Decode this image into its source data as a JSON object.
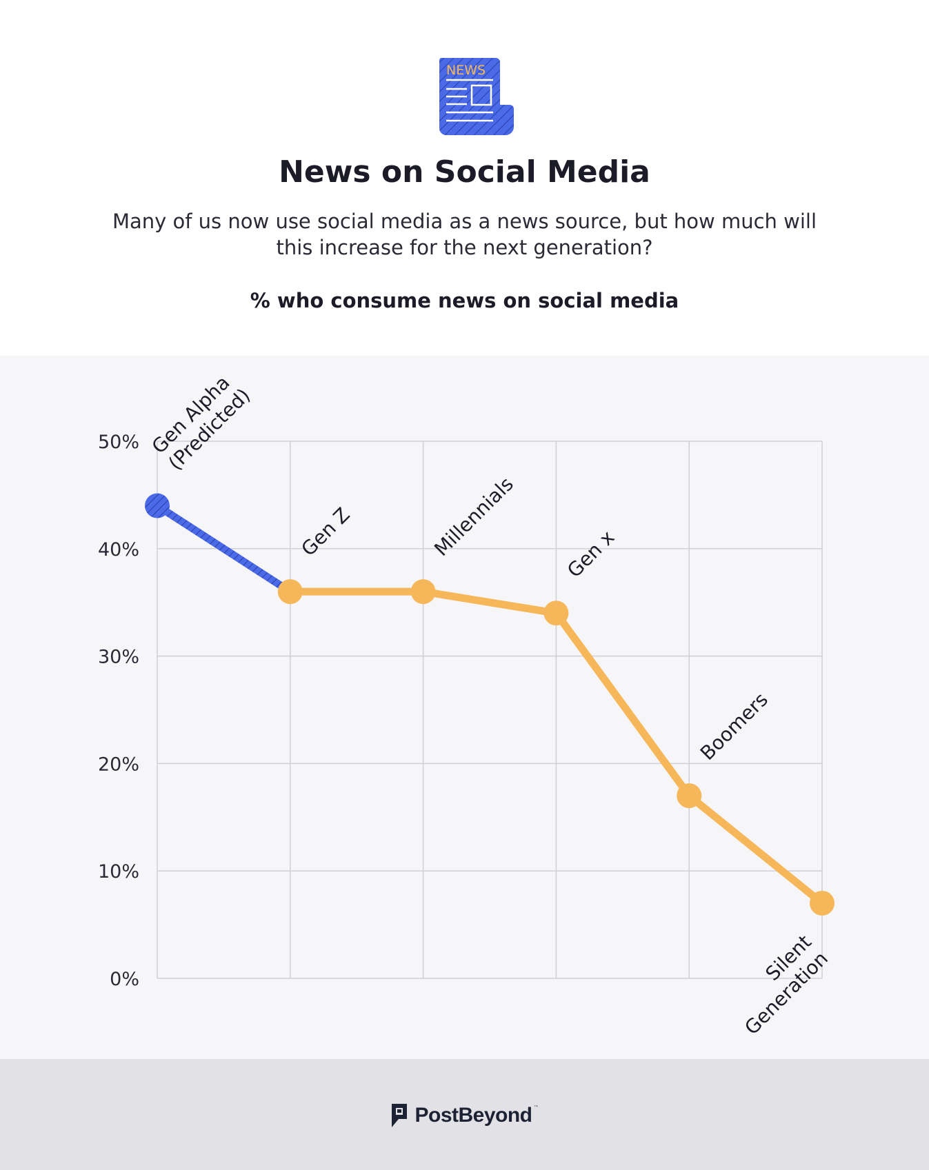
{
  "header": {
    "icon": "newspaper-icon",
    "icon_text": "NEWS",
    "title": "News on Social Media",
    "subtitle": "Many of us now use social media as a news source, but how much will this increase for the next generation?",
    "metric_label": "% who consume news on social media"
  },
  "chart_data": {
    "type": "line",
    "title": "News on Social Media",
    "subtitle": "Many of us now use social media as a news source, but how much will this increase for the next generation?",
    "ylabel": "% who consume news on social media",
    "xlabel": "",
    "ylim": [
      0,
      50
    ],
    "yticks": [
      "0%",
      "10%",
      "20%",
      "30%",
      "40%",
      "50%"
    ],
    "grid": true,
    "categories": [
      [
        "Gen Alpha",
        "(Predicted)"
      ],
      [
        "Gen Z"
      ],
      [
        "Millennials"
      ],
      [
        "Gen x"
      ],
      [
        "Boomers"
      ],
      [
        "Silent",
        "Generation"
      ]
    ],
    "values": [
      44,
      36,
      36,
      34,
      17,
      7
    ],
    "predicted_color": "#4a6ae8",
    "actual_color": "#f6b75a"
  },
  "footer": {
    "brand": "PostBeyond",
    "trademark": "™"
  }
}
